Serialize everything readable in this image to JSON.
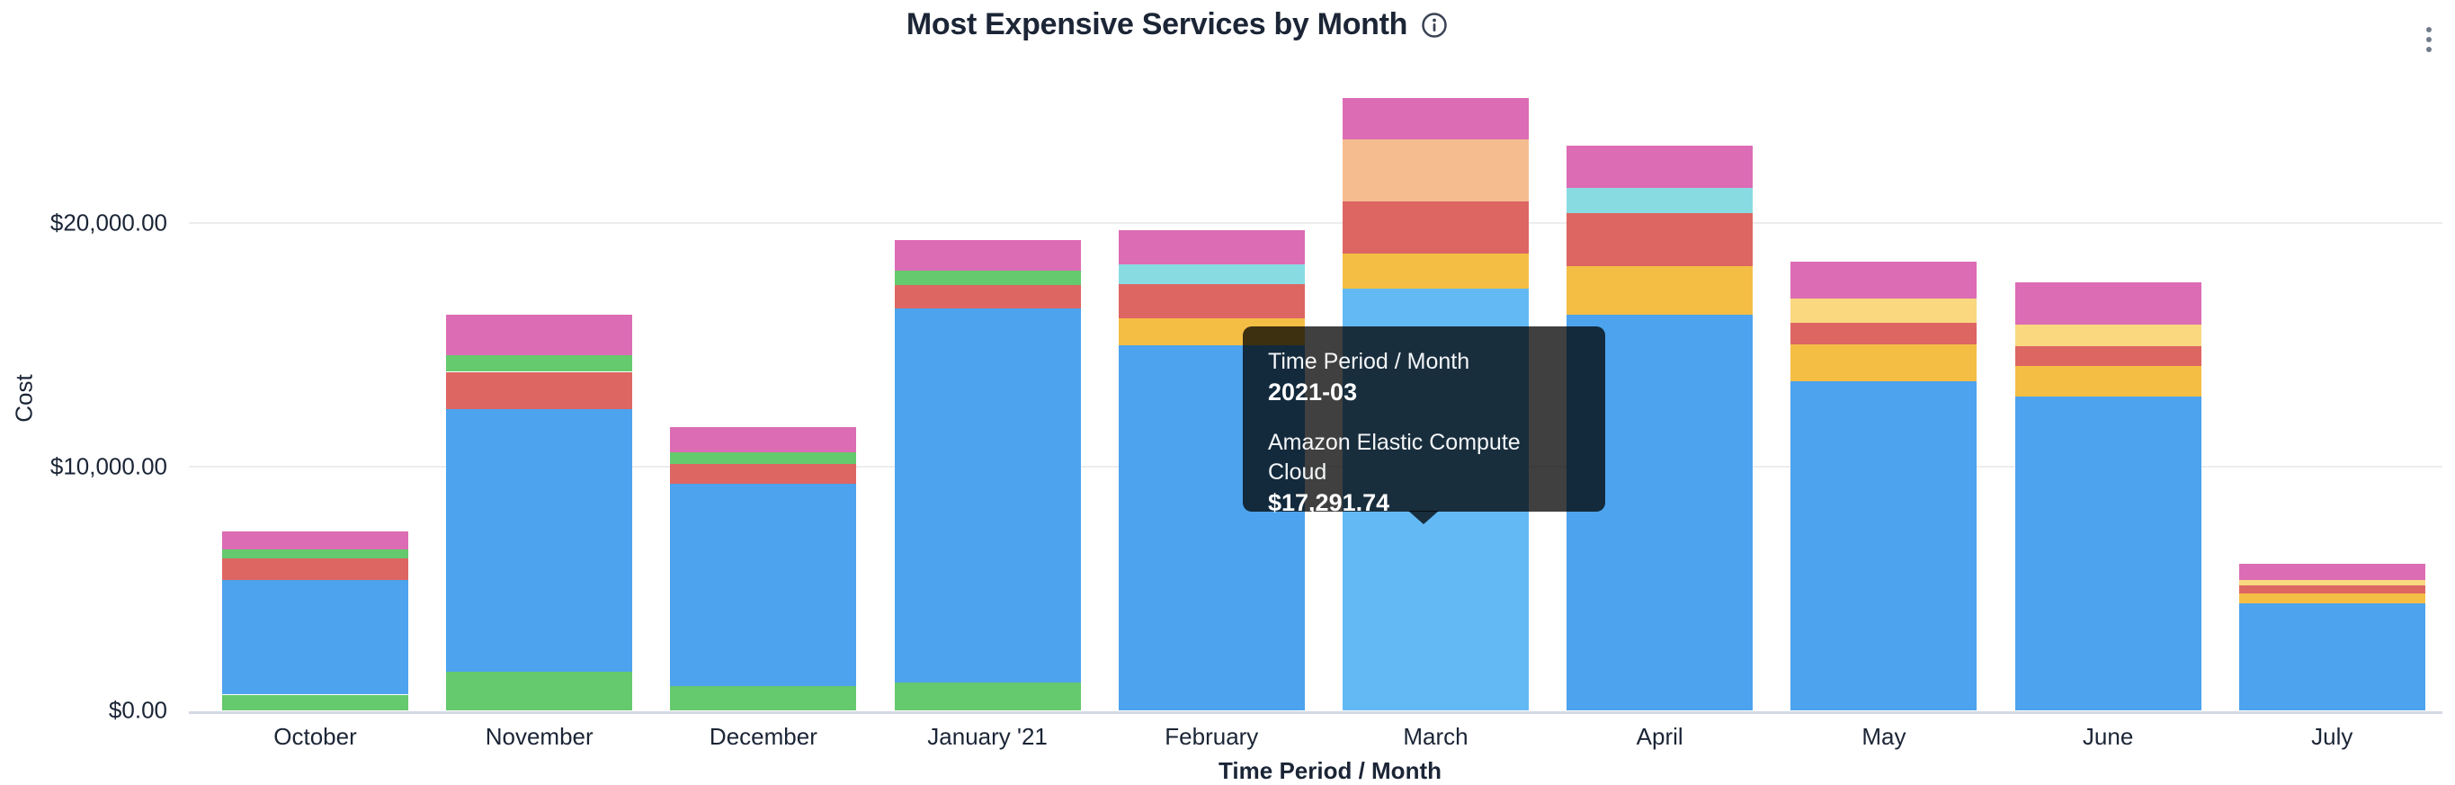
{
  "header": {
    "title": "Most Expensive Services by Month",
    "info_icon": "info-circle-icon",
    "menu_icon": "kebab-vertical-icon"
  },
  "colors": {
    "blue": "#4DA3ED",
    "blue_highlight": "#63B9F4",
    "green": "#65C96D",
    "red": "#DD6663",
    "orange": "#F4BE45",
    "pale_yellow": "#F9D880",
    "teal": "#89DBE2",
    "peach": "#F5BC90",
    "pink": "#DC6CB4",
    "grid": "#ECEDEF",
    "baseline": "#D4D9E3",
    "text": "#1B2536",
    "tooltip_bg": "rgba(0,0,0,0.75)"
  },
  "tooltip": {
    "label": "Time Period / Month",
    "period": "2021-03",
    "series_name": "Amazon Elastic Compute Cloud",
    "value": "$17,291.74"
  },
  "chart_data": {
    "type": "bar",
    "stacked": true,
    "title": "Most Expensive Services by Month",
    "xlabel": "Time Period / Month",
    "ylabel": "Cost",
    "ylim": [
      0,
      25500
    ],
    "grid": true,
    "legend": "none",
    "y_ticks": [
      {
        "label": "$0.00",
        "value": 0
      },
      {
        "label": "$10,000.00",
        "value": 10000
      },
      {
        "label": "$20,000.00",
        "value": 20000
      }
    ],
    "categories": [
      "October",
      "November",
      "December",
      "January '21",
      "February",
      "March",
      "April",
      "May",
      "June",
      "July"
    ],
    "known_series": {
      "blue": "Amazon Elastic Compute Cloud"
    },
    "hover": {
      "month": "March",
      "segment": "Amazon Elastic Compute Cloud",
      "value": 17291.74
    },
    "bars": [
      {
        "month": "October",
        "total": 7335,
        "segments": [
          {
            "color": "green",
            "value": 645
          },
          {
            "color": "blue",
            "value": 4695
          },
          {
            "color": "red",
            "value": 885
          },
          {
            "color": "green",
            "value": 370
          },
          {
            "color": "pink",
            "value": 740
          }
        ]
      },
      {
        "month": "November",
        "total": 16210,
        "segments": [
          {
            "color": "green",
            "value": 1570
          },
          {
            "color": "blue",
            "value": 10795
          },
          {
            "color": "red",
            "value": 1515
          },
          {
            "color": "green",
            "value": 665
          },
          {
            "color": "pink",
            "value": 1665
          }
        ]
      },
      {
        "month": "December",
        "total": 11610,
        "segments": [
          {
            "color": "green",
            "value": 1000
          },
          {
            "color": "blue",
            "value": 8280
          },
          {
            "color": "red",
            "value": 815
          },
          {
            "color": "green",
            "value": 480
          },
          {
            "color": "pink",
            "value": 1035
          }
        ]
      },
      {
        "month": "January '21",
        "total": 19290,
        "segments": [
          {
            "color": "green",
            "value": 1150
          },
          {
            "color": "blue",
            "value": 15330
          },
          {
            "color": "red",
            "value": 960
          },
          {
            "color": "green",
            "value": 590
          },
          {
            "color": "pink",
            "value": 1260
          }
        ]
      },
      {
        "month": "February",
        "total": 19680,
        "segments": [
          {
            "color": "blue",
            "value": 14980
          },
          {
            "color": "orange",
            "value": 1110
          },
          {
            "color": "red",
            "value": 1370
          },
          {
            "color": "teal",
            "value": 815
          },
          {
            "color": "pink",
            "value": 1405
          }
        ]
      },
      {
        "month": "March",
        "total": 25091.74,
        "segments": [
          {
            "color": "blue_highlight",
            "value": 17291.74
          },
          {
            "color": "orange",
            "value": 1440
          },
          {
            "color": "red",
            "value": 2145
          },
          {
            "color": "peach",
            "value": 2515
          },
          {
            "color": "pink",
            "value": 1700
          }
        ]
      },
      {
        "month": "April",
        "total": 23135,
        "segments": [
          {
            "color": "blue",
            "value": 16220
          },
          {
            "color": "orange",
            "value": 2000
          },
          {
            "color": "red",
            "value": 2180
          },
          {
            "color": "teal",
            "value": 1035
          },
          {
            "color": "pink",
            "value": 1700
          }
        ]
      },
      {
        "month": "May",
        "total": 18410,
        "segments": [
          {
            "color": "blue",
            "value": 13490
          },
          {
            "color": "orange",
            "value": 1515
          },
          {
            "color": "red",
            "value": 890
          },
          {
            "color": "pale_yellow",
            "value": 1000
          },
          {
            "color": "pink",
            "value": 1515
          }
        ]
      },
      {
        "month": "June",
        "total": 17555,
        "segments": [
          {
            "color": "blue",
            "value": 12860
          },
          {
            "color": "orange",
            "value": 1255
          },
          {
            "color": "red",
            "value": 815
          },
          {
            "color": "pale_yellow",
            "value": 890
          },
          {
            "color": "pink",
            "value": 1735
          }
        ]
      },
      {
        "month": "July",
        "total": 6020,
        "segments": [
          {
            "color": "blue",
            "value": 4400
          },
          {
            "color": "orange",
            "value": 405
          },
          {
            "color": "red",
            "value": 330
          },
          {
            "color": "pale_yellow",
            "value": 220
          },
          {
            "color": "pink",
            "value": 665
          }
        ]
      }
    ]
  }
}
